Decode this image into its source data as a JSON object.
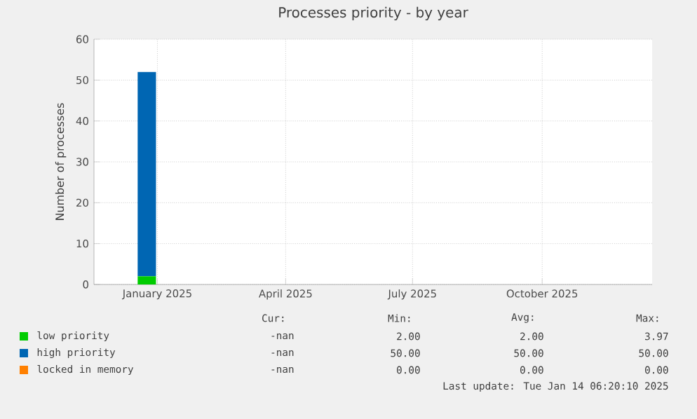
{
  "chart_data": {
    "type": "area",
    "stacked": true,
    "title": "Processes priority - by year",
    "ylabel": "Number of processes",
    "x": [
      "2025-01-01",
      "2025-01-14"
    ],
    "series": [
      {
        "name": "low priority",
        "color": "#00cc00",
        "values": [
          2,
          2
        ]
      },
      {
        "name": "high priority",
        "color": "#0066b3",
        "values": [
          50,
          50
        ]
      },
      {
        "name": "locked in memory",
        "color": "#ff8000",
        "values": [
          null,
          null
        ]
      }
    ],
    "xlim": [
      "2024-12-01",
      "2026-01-01"
    ],
    "xticks": [
      {
        "value": "2025-01-15",
        "label": "January 2025"
      },
      {
        "value": "2025-04-16",
        "label": "April 2025"
      },
      {
        "value": "2025-07-15",
        "label": "July 2025"
      },
      {
        "value": "2025-10-15",
        "label": "October 2025"
      }
    ],
    "ylim": [
      0,
      60
    ],
    "yticks": [
      0,
      10,
      20,
      30,
      40,
      50,
      60
    ],
    "grid": true,
    "legend": "bottom",
    "annotations": [
      "Cur:",
      "Min:",
      "Avg:",
      "Max:",
      "-nan",
      "2.00",
      "2.00",
      "3.97",
      "-nan",
      "50.00",
      "50.00",
      "50.00",
      "-nan",
      "0.00",
      "0.00",
      "0.00",
      "Last update: Tue Jan 14 06:20:10 2025"
    ]
  }
}
